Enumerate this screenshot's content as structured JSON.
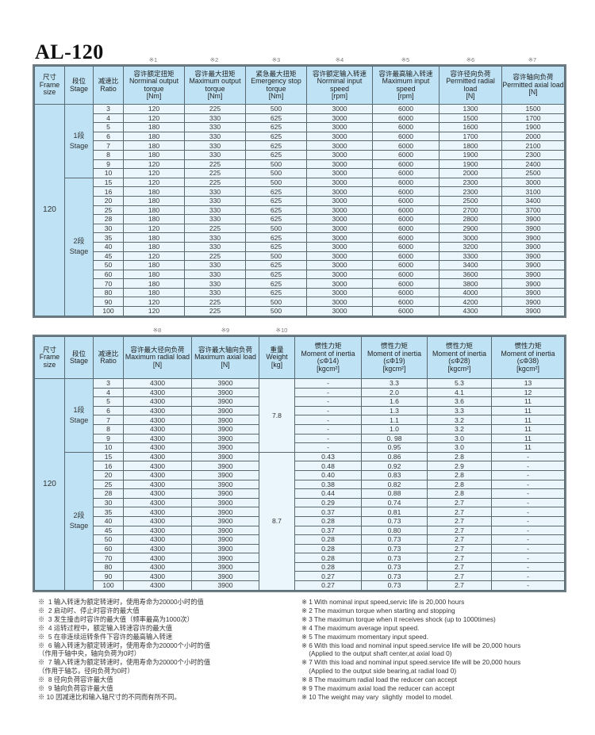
{
  "title": "AL-120",
  "table1": {
    "notes": [
      "※1",
      "※2",
      "※3",
      "※4",
      "※5",
      "※6",
      "※7"
    ],
    "headers": [
      {
        "cn": "尺寸",
        "en": "Frame size"
      },
      {
        "cn": "段位",
        "en": "Stage"
      },
      {
        "cn": "减速比",
        "en": "Ratio"
      },
      {
        "cn": "容许额定扭矩",
        "en": "Norminal output torque",
        "unit": "[Nm]"
      },
      {
        "cn": "容许最大扭矩",
        "en": "Maximum output torque",
        "unit": "[Nm]"
      },
      {
        "cn": "紧急最大扭矩",
        "en": "Emergency stop torque",
        "unit": "[Nm]"
      },
      {
        "cn": "容许额定输入转速",
        "en": "Norminal input speed",
        "unit": "[rpm]"
      },
      {
        "cn": "容许最高输入转速",
        "en": "Maximum input speed",
        "unit": "[rpm]"
      },
      {
        "cn": "容许径向负荷",
        "en": "Permitted radial load",
        "unit": "[N]"
      },
      {
        "cn": "容许轴向负荷",
        "en": "Permitted axial load",
        "unit": "[N]"
      }
    ],
    "frame": "120",
    "stage1": {
      "cn": "1段",
      "en": "Stage"
    },
    "stage2": {
      "cn": "2段",
      "en": "Stage"
    },
    "rows": [
      [
        "3",
        "120",
        "225",
        "500",
        "3000",
        "6000",
        "1300",
        "1500"
      ],
      [
        "4",
        "120",
        "330",
        "625",
        "3000",
        "6000",
        "1500",
        "1700"
      ],
      [
        "5",
        "180",
        "330",
        "625",
        "3000",
        "6000",
        "1600",
        "1900"
      ],
      [
        "6",
        "180",
        "330",
        "625",
        "3000",
        "6000",
        "1700",
        "2000"
      ],
      [
        "7",
        "180",
        "330",
        "625",
        "3000",
        "6000",
        "1800",
        "2100"
      ],
      [
        "8",
        "180",
        "330",
        "625",
        "3000",
        "6000",
        "1900",
        "2300"
      ],
      [
        "9",
        "120",
        "225",
        "500",
        "3000",
        "6000",
        "1900",
        "2400"
      ],
      [
        "10",
        "120",
        "225",
        "500",
        "3000",
        "6000",
        "2000",
        "2500"
      ],
      [
        "15",
        "120",
        "225",
        "500",
        "3000",
        "6000",
        "2300",
        "3000"
      ],
      [
        "16",
        "180",
        "330",
        "625",
        "3000",
        "6000",
        "2300",
        "3100"
      ],
      [
        "20",
        "180",
        "330",
        "625",
        "3000",
        "6000",
        "2500",
        "3400"
      ],
      [
        "25",
        "180",
        "330",
        "625",
        "3000",
        "6000",
        "2700",
        "3700"
      ],
      [
        "28",
        "180",
        "330",
        "625",
        "3000",
        "6000",
        "2800",
        "3900"
      ],
      [
        "30",
        "120",
        "225",
        "500",
        "3000",
        "6000",
        "2900",
        "3900"
      ],
      [
        "35",
        "180",
        "330",
        "625",
        "3000",
        "6000",
        "3000",
        "3900"
      ],
      [
        "40",
        "180",
        "330",
        "625",
        "3000",
        "6000",
        "3200",
        "3900"
      ],
      [
        "45",
        "120",
        "225",
        "500",
        "3000",
        "6000",
        "3300",
        "3900"
      ],
      [
        "50",
        "180",
        "330",
        "625",
        "3000",
        "6000",
        "3400",
        "3900"
      ],
      [
        "60",
        "180",
        "330",
        "625",
        "3000",
        "6000",
        "3600",
        "3900"
      ],
      [
        "70",
        "180",
        "330",
        "625",
        "3000",
        "6000",
        "3800",
        "3900"
      ],
      [
        "80",
        "180",
        "330",
        "625",
        "3000",
        "6000",
        "4000",
        "3900"
      ],
      [
        "90",
        "120",
        "225",
        "500",
        "3000",
        "6000",
        "4200",
        "3900"
      ],
      [
        "100",
        "120",
        "225",
        "500",
        "3000",
        "6000",
        "4300",
        "3900"
      ]
    ]
  },
  "table2": {
    "notes": [
      "※8",
      "※9",
      "※10"
    ],
    "headers": [
      {
        "cn": "尺寸",
        "en": "Frame size"
      },
      {
        "cn": "段位",
        "en": "Stage"
      },
      {
        "cn": "减速比",
        "en": "Ratio"
      },
      {
        "cn": "容许最大径向负荷",
        "en": "Maximum radial load",
        "unit": "[N]"
      },
      {
        "cn": "容许最大轴向负荷",
        "en": "Maximum axial load",
        "unit": "[N]"
      },
      {
        "cn": "重量",
        "en": "Weight",
        "unit": "[kg]"
      },
      {
        "cn": "惯性力矩",
        "en": "Moment of inertia",
        "sub": "(≤Φ14)",
        "unit": "[kgcm²]"
      },
      {
        "cn": "惯性力矩",
        "en": "Moment of inertia",
        "sub": "(≤Φ19)",
        "unit": "[kgcm²]"
      },
      {
        "cn": "惯性力矩",
        "en": "Moment of inertia",
        "sub": "(≤Φ28)",
        "unit": "[kgcm²]"
      },
      {
        "cn": "惯性力矩",
        "en": "Moment of inertia",
        "sub": "(≤Φ38)",
        "unit": "[kgcm²]"
      }
    ],
    "frame": "120",
    "stage1": {
      "cn": "1段",
      "en": "Stage",
      "weight": "7.8"
    },
    "stage2": {
      "cn": "2段",
      "en": "Stage",
      "weight": "8.7"
    },
    "rows": [
      [
        "3",
        "4300",
        "3900",
        "-",
        "3.3",
        "5.3",
        "13"
      ],
      [
        "4",
        "4300",
        "3900",
        "-",
        "2.0",
        "4.1",
        "12"
      ],
      [
        "5",
        "4300",
        "3900",
        "-",
        "1.6",
        "3.6",
        "11"
      ],
      [
        "6",
        "4300",
        "3900",
        "-",
        "1.3",
        "3.3",
        "11"
      ],
      [
        "7",
        "4300",
        "3900",
        "-",
        "1.1",
        "3.2",
        "11"
      ],
      [
        "8",
        "4300",
        "3900",
        "-",
        "1.0",
        "3.2",
        "11"
      ],
      [
        "9",
        "4300",
        "3900",
        "-",
        "0. 98",
        "3.0",
        "11"
      ],
      [
        "10",
        "4300",
        "3900",
        "-",
        "0.95",
        "3.0",
        "11"
      ],
      [
        "15",
        "4300",
        "3900",
        "0.43",
        "0.86",
        "2.8",
        "-"
      ],
      [
        "16",
        "4300",
        "3900",
        "0.48",
        "0.92",
        "2.9",
        "-"
      ],
      [
        "20",
        "4300",
        "3900",
        "0.40",
        "0.83",
        "2.8",
        "-"
      ],
      [
        "25",
        "4300",
        "3900",
        "0.38",
        "0.82",
        "2.8",
        "-"
      ],
      [
        "28",
        "4300",
        "3900",
        "0.44",
        "0.88",
        "2.8",
        "-"
      ],
      [
        "30",
        "4300",
        "3900",
        "0.29",
        "0.74",
        "2.7",
        "-"
      ],
      [
        "35",
        "4300",
        "3900",
        "0.37",
        "0.81",
        "2.7",
        "-"
      ],
      [
        "40",
        "4300",
        "3900",
        "0.28",
        "0.73",
        "2.7",
        "-"
      ],
      [
        "45",
        "4300",
        "3900",
        "0.37",
        "0.80",
        "2.7",
        "-"
      ],
      [
        "50",
        "4300",
        "3900",
        "0.28",
        "0.73",
        "2.7",
        "-"
      ],
      [
        "60",
        "4300",
        "3900",
        "0.28",
        "0.73",
        "2.7",
        "-"
      ],
      [
        "70",
        "4300",
        "3900",
        "0.28",
        "0.73",
        "2.7",
        "-"
      ],
      [
        "80",
        "4300",
        "3900",
        "0.28",
        "0.73",
        "2.7",
        "-"
      ],
      [
        "90",
        "4300",
        "3900",
        "0.27",
        "0.73",
        "2.7",
        "-"
      ],
      [
        "100",
        "4300",
        "3900",
        "0.27",
        "0.73",
        "2.7",
        "-"
      ]
    ]
  },
  "footnotes_cn": [
    "※  1 输入转速为额定转速时，使用寿命为20000小时的值",
    "※  2 启动时、停止时容许的最大值",
    "※  3 发生撞击时容许的最大值（频率最高为1000次）",
    "※  4 运转过程中，额定输入转速容许的最大值",
    "※  5 在非连续运转条件下容许的最高输入转速",
    "※  6 输入转速为额定转速时，使用寿命为20000个小时的值",
    "（作用于轴中央，轴向负荷为0时）",
    "※  7 输入转速为额定转速时，使用寿命为20000个小时的值",
    "（作用于轴芯，径向负荷为0时）",
    "※  8 径向负荷容许最大值",
    "※  9 轴向负荷容许最大值",
    "※ 10 因减速比和输入轴尺寸的不同而有所不同。"
  ],
  "footnotes_en": [
    "※ 1 With nominal input speed,servic life is 20,000 hours",
    "※ 2 The maximun torque when starting and stopping",
    "※ 3 The maximun torque when it receives shock (up to 1000times)",
    "※ 4 The maximum average input speed.",
    "※ 5 The maximum momentary input speed.",
    "※ 6 With this load and nominal input speed.service life will be 20,000 hours",
    "    (Applied to the output shaft center,at axial load 0)",
    "※ 7 With this load and nominal input speed.service life will be 20,000 hours",
    "    (Applied to the output side bearing,at radial load 0)",
    "※ 8 The maximum radial load the reducer can accept",
    "※ 9 The maximum axial load the reducer can accept",
    "※ 10 The weight may vary  slightly  model to model."
  ],
  "colors": {
    "header_bg": "#bfe3f5",
    "cell_bg": "#eaf6fc",
    "border": "#5a6a72"
  }
}
